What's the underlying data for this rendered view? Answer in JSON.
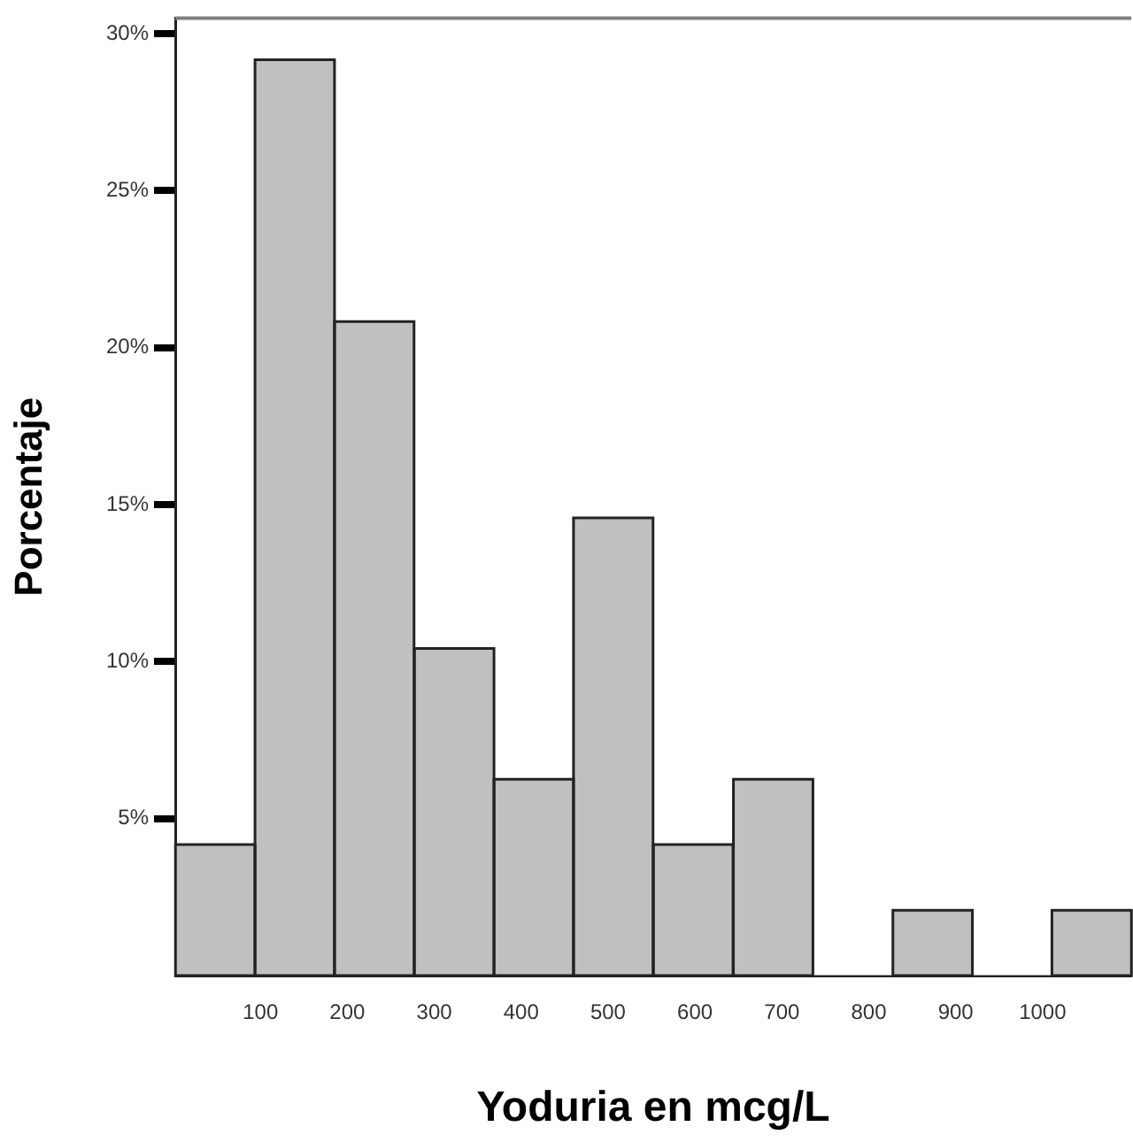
{
  "chart_data": {
    "type": "histogram",
    "xlabel": "Yoduria en mcg/L",
    "ylabel": "Porcentaje",
    "bins": [
      2,
      94,
      185,
      277,
      369,
      460,
      552,
      644,
      736,
      828,
      919,
      1011,
      1102
    ],
    "values": [
      4.17,
      29.17,
      20.83,
      10.42,
      6.25,
      14.58,
      4.17,
      6.25,
      0,
      2.08,
      0,
      2.08
    ],
    "color": "#c0c0c0",
    "xlim": [
      2,
      1102
    ],
    "xticks": [
      100,
      200,
      300,
      400,
      500,
      600,
      700,
      800,
      900,
      1000
    ],
    "ylim": [
      0,
      30.5
    ],
    "yticks": [
      {
        "value": 5,
        "label": "5%"
      },
      {
        "value": 10,
        "label": "10%"
      },
      {
        "value": 15,
        "label": "15%"
      },
      {
        "value": 20,
        "label": "20%"
      },
      {
        "value": 25,
        "label": "25%"
      },
      {
        "value": 30,
        "label": "30%"
      }
    ]
  }
}
